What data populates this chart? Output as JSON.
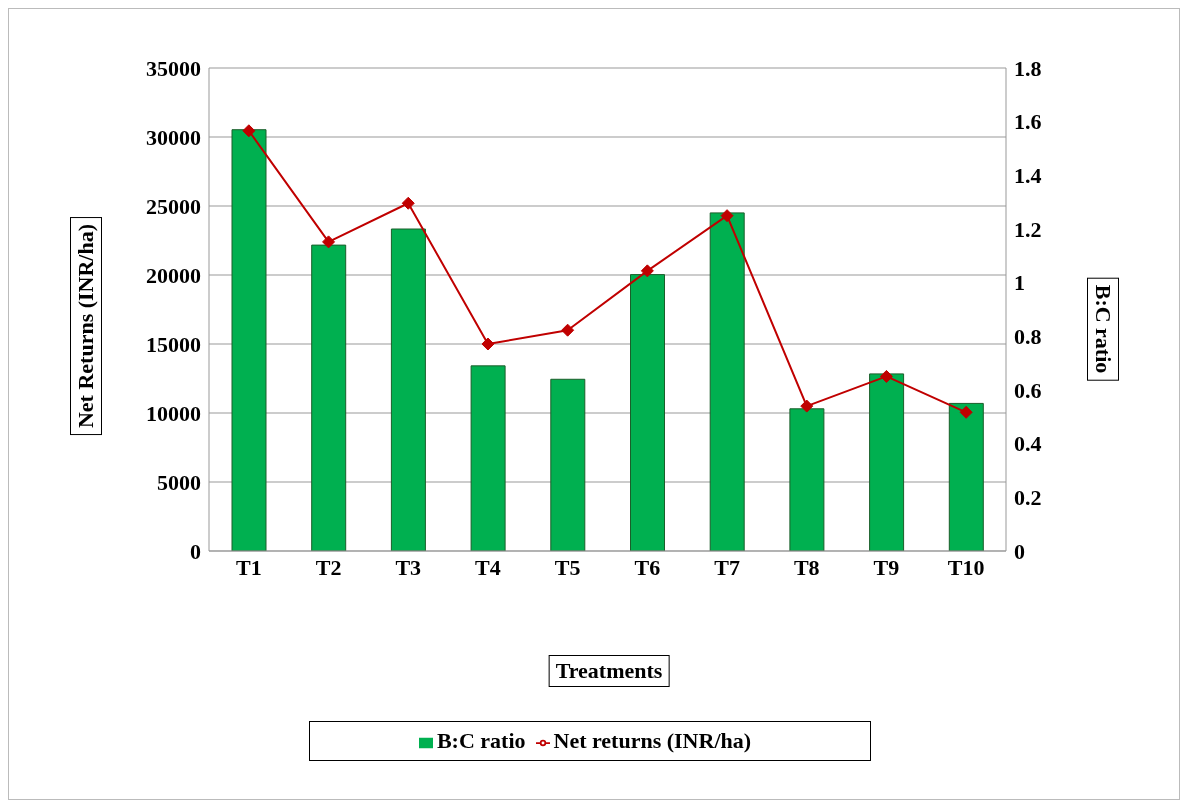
{
  "chart_data": {
    "type": "bar",
    "xlabel": "Treatments",
    "ylabel": "Net Returns  (INR/ha)",
    "y2label": "B:C ratio",
    "categories": [
      "T1",
      "T2",
      "T3",
      "T4",
      "T5",
      "T6",
      "T7",
      "T8",
      "T9",
      "T10"
    ],
    "series": [
      {
        "name": "B:C ratio",
        "axis": "y2",
        "color": "#00b050",
        "values": [
          1.57,
          1.14,
          1.2,
          0.69,
          0.64,
          1.03,
          1.26,
          0.53,
          0.66,
          0.55
        ]
      },
      {
        "name": "Net returns (INR/ha)",
        "type": "line",
        "color": "#c00000",
        "marker": "diamond",
        "line_style": "solid",
        "values": [
          30450,
          22400,
          25200,
          15000,
          16000,
          20300,
          24300,
          10500,
          12650,
          10050
        ]
      }
    ],
    "ylim": [
      0,
      35000
    ],
    "yticks": [
      0,
      5000,
      10000,
      15000,
      20000,
      25000,
      30000,
      35000
    ],
    "y2lim": [
      0,
      1.8
    ],
    "y2ticks": [
      0,
      0.2,
      0.4,
      0.6,
      0.8,
      1,
      1.2,
      1.4,
      1.6,
      1.8
    ],
    "grid": "y",
    "legend": "bottom"
  }
}
